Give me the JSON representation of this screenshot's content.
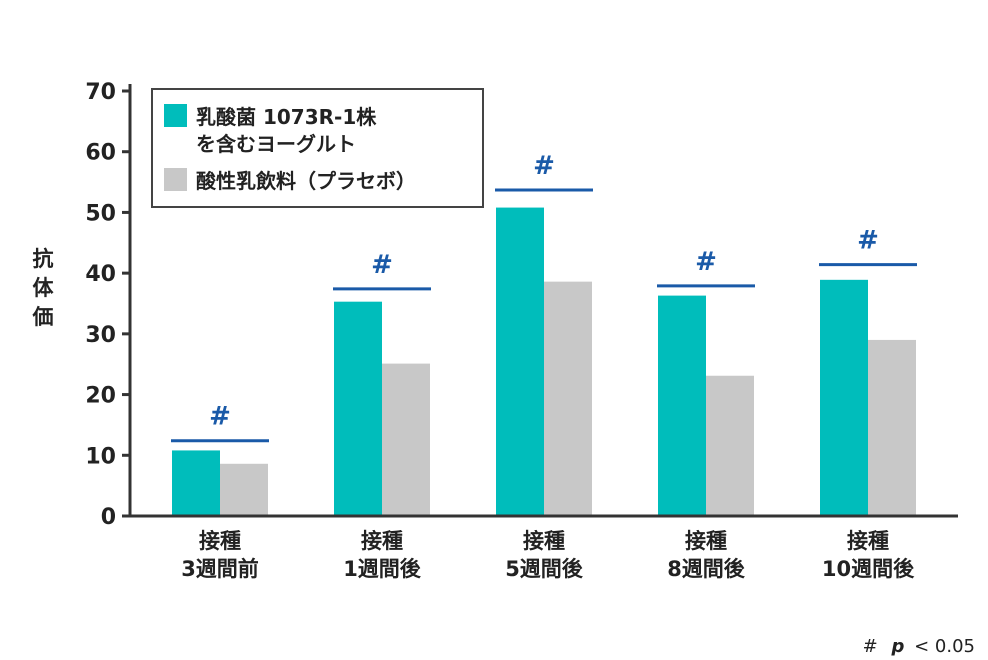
{
  "chart_data": {
    "type": "bar",
    "ylabel": "抗体価",
    "xlabel": "",
    "ylim": [
      0,
      70
    ],
    "yticks": [
      0,
      10,
      20,
      30,
      40,
      50,
      60,
      70
    ],
    "categories": [
      [
        "接種",
        "3週間前"
      ],
      [
        "接種",
        "1週間後"
      ],
      [
        "接種",
        "5週間後"
      ],
      [
        "接種",
        "8週間後"
      ],
      [
        "接種",
        "10週間後"
      ]
    ],
    "series": [
      {
        "name_lines": [
          "乳酸菌 1073R-1株",
          "を含むヨーグルト"
        ],
        "color": "#00bdbb",
        "values": [
          10.8,
          35.3,
          50.8,
          36.3,
          38.9
        ]
      },
      {
        "name_lines": [
          "酸性乳飲料（プラセボ）"
        ],
        "color": "#c8c8c8",
        "values": [
          8.6,
          25.1,
          38.6,
          23.1,
          29.0
        ]
      }
    ],
    "significance": {
      "symbol": "#",
      "color": "#1a5aa8",
      "line_values": [
        12.4,
        37.4,
        53.7,
        37.9,
        41.4
      ]
    },
    "legend_placement": "top-left",
    "grid": false
  },
  "footnote": {
    "symbol": "#",
    "p": "p",
    "rest": "< 0.05"
  }
}
